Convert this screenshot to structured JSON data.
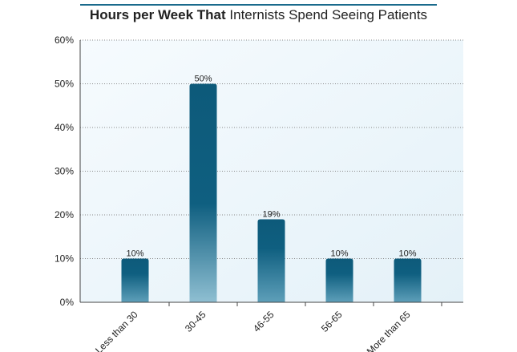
{
  "chart_data": {
    "type": "bar",
    "title_bold": "Hours per Week That",
    "title_regular": "Internists Spend Seeing Patients",
    "categories": [
      "Less than 30",
      "30-45",
      "46-55",
      "56-65",
      "More than 65"
    ],
    "values": [
      10,
      50,
      19,
      10,
      10
    ],
    "data_labels": [
      "10%",
      "50%",
      "19%",
      "10%",
      "10%"
    ],
    "yticks": [
      0,
      10,
      20,
      30,
      40,
      50,
      60
    ],
    "ytick_labels": [
      "0%",
      "10%",
      "20%",
      "30%",
      "40%",
      "50%",
      "60%"
    ],
    "ylim": [
      0,
      60
    ],
    "xlabel": "",
    "ylabel": "",
    "grid": true,
    "bar_color": "#0d5a7a",
    "bar_color_light": "#8fbfd2",
    "plot_bg": "#eef6fb"
  }
}
